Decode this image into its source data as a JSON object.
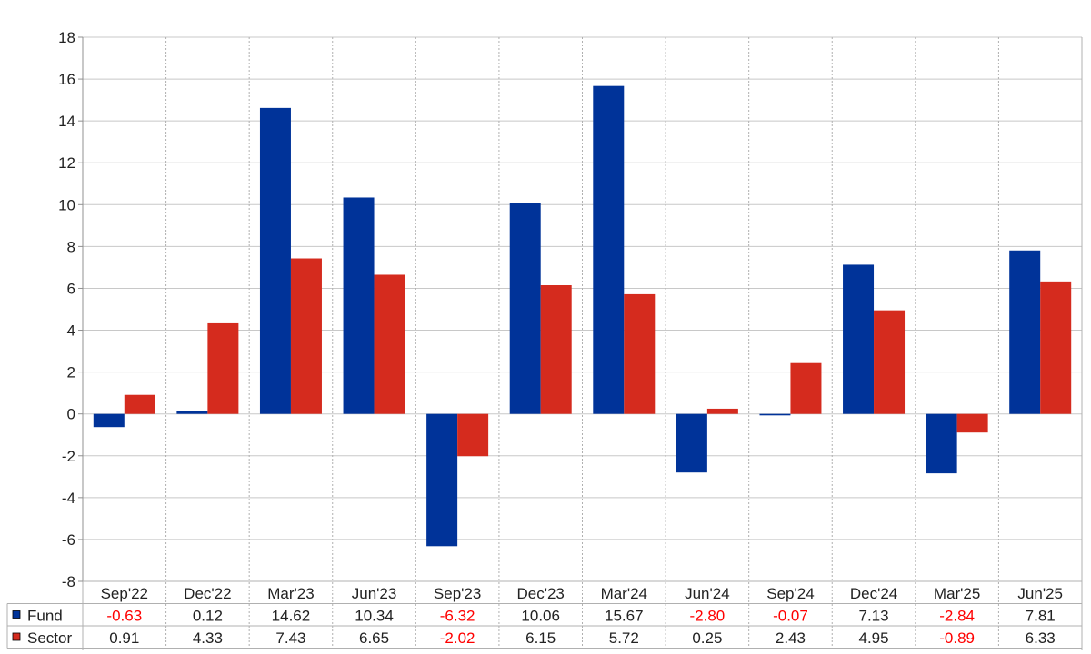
{
  "chart_data": {
    "type": "bar",
    "title": "",
    "xlabel": "",
    "ylabel": "",
    "ylim": [
      -8,
      18
    ],
    "yticks": [
      -8,
      -6,
      -4,
      -2,
      0,
      2,
      4,
      6,
      8,
      10,
      12,
      14,
      16,
      18
    ],
    "grid": true,
    "legend_placement": "bottom table",
    "categories": [
      "Sep'22",
      "Dec'22",
      "Mar'23",
      "Jun'23",
      "Sep'23",
      "Dec'23",
      "Mar'24",
      "Jun'24",
      "Sep'24",
      "Dec'24",
      "Mar'25",
      "Jun'25"
    ],
    "series": [
      {
        "name": "Fund",
        "color": "#003399",
        "values": [
          -0.63,
          0.12,
          14.62,
          10.34,
          -6.32,
          10.06,
          15.67,
          -2.8,
          -0.07,
          7.13,
          -2.84,
          7.81
        ],
        "labels": [
          "-0.63",
          "0.12",
          "14.62",
          "10.34",
          "-6.32",
          "10.06",
          "15.67",
          "-2.80",
          "-0.07",
          "7.13",
          "-2.84",
          "7.81"
        ]
      },
      {
        "name": "Sector",
        "color": "#d52b1e",
        "values": [
          0.91,
          4.33,
          7.43,
          6.65,
          -2.02,
          6.15,
          5.72,
          0.25,
          2.43,
          4.95,
          -0.89,
          6.33
        ],
        "labels": [
          "0.91",
          "4.33",
          "7.43",
          "6.65",
          "-2.02",
          "6.15",
          "5.72",
          "0.25",
          "2.43",
          "4.95",
          "-0.89",
          "6.33"
        ]
      }
    ],
    "negative_label_color": "#ff0000"
  }
}
